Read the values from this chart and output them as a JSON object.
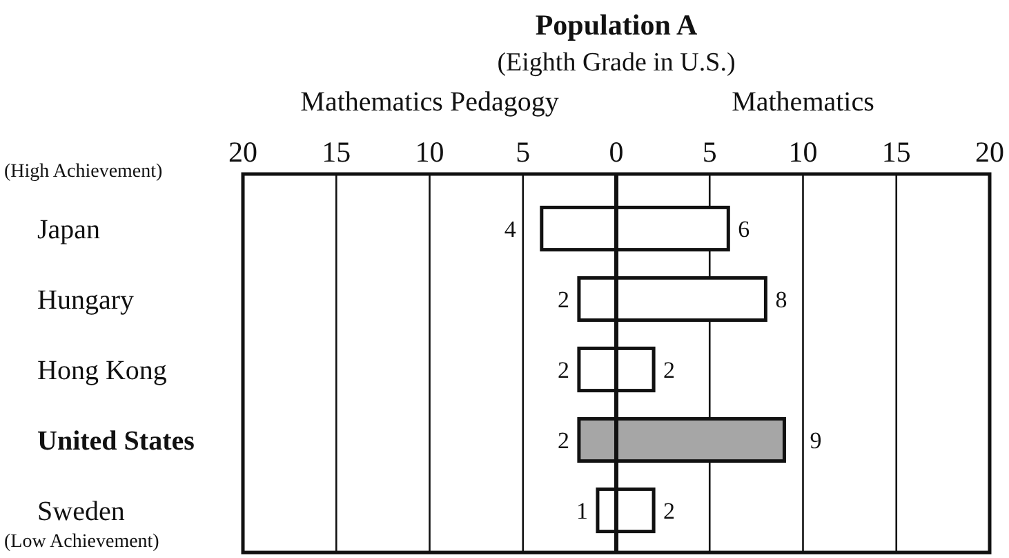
{
  "chart_data": {
    "type": "bar",
    "orientation": "horizontal",
    "title": "Population A",
    "subtitle": "(Eighth Grade in U.S.)",
    "categories": [
      "Japan",
      "Hungary",
      "Hong Kong",
      "United States",
      "Sweden"
    ],
    "series": [
      {
        "colors": [
          "#ffffff",
          "#ffffff",
          "#ffffff",
          "#a6a6a6",
          "#ffffff"
        ],
        "base": [
          -4,
          -2,
          -2,
          -2,
          -1
        ],
        "values": [
          4,
          2,
          2,
          2,
          1
        ]
      },
      {
        "colors": [
          "#ffffff",
          "#ffffff",
          "#ffffff",
          "#a6a6a6",
          "#ffffff"
        ],
        "values": [
          6,
          8,
          2,
          9,
          2
        ]
      }
    ],
    "data_labels": true,
    "xlim": [
      -20,
      20
    ],
    "xticks": [
      {
        "value": -20,
        "label": "20"
      },
      {
        "value": -15,
        "label": "15"
      },
      {
        "value": -10,
        "label": "10"
      },
      {
        "value": -5,
        "label": "5"
      },
      0,
      5,
      10,
      15,
      20
    ],
    "grid": "x",
    "annotations": [
      "(High Achievement)",
      "(Low Achievement)",
      "Mathematics Pedagogy",
      "Mathematics"
    ]
  }
}
